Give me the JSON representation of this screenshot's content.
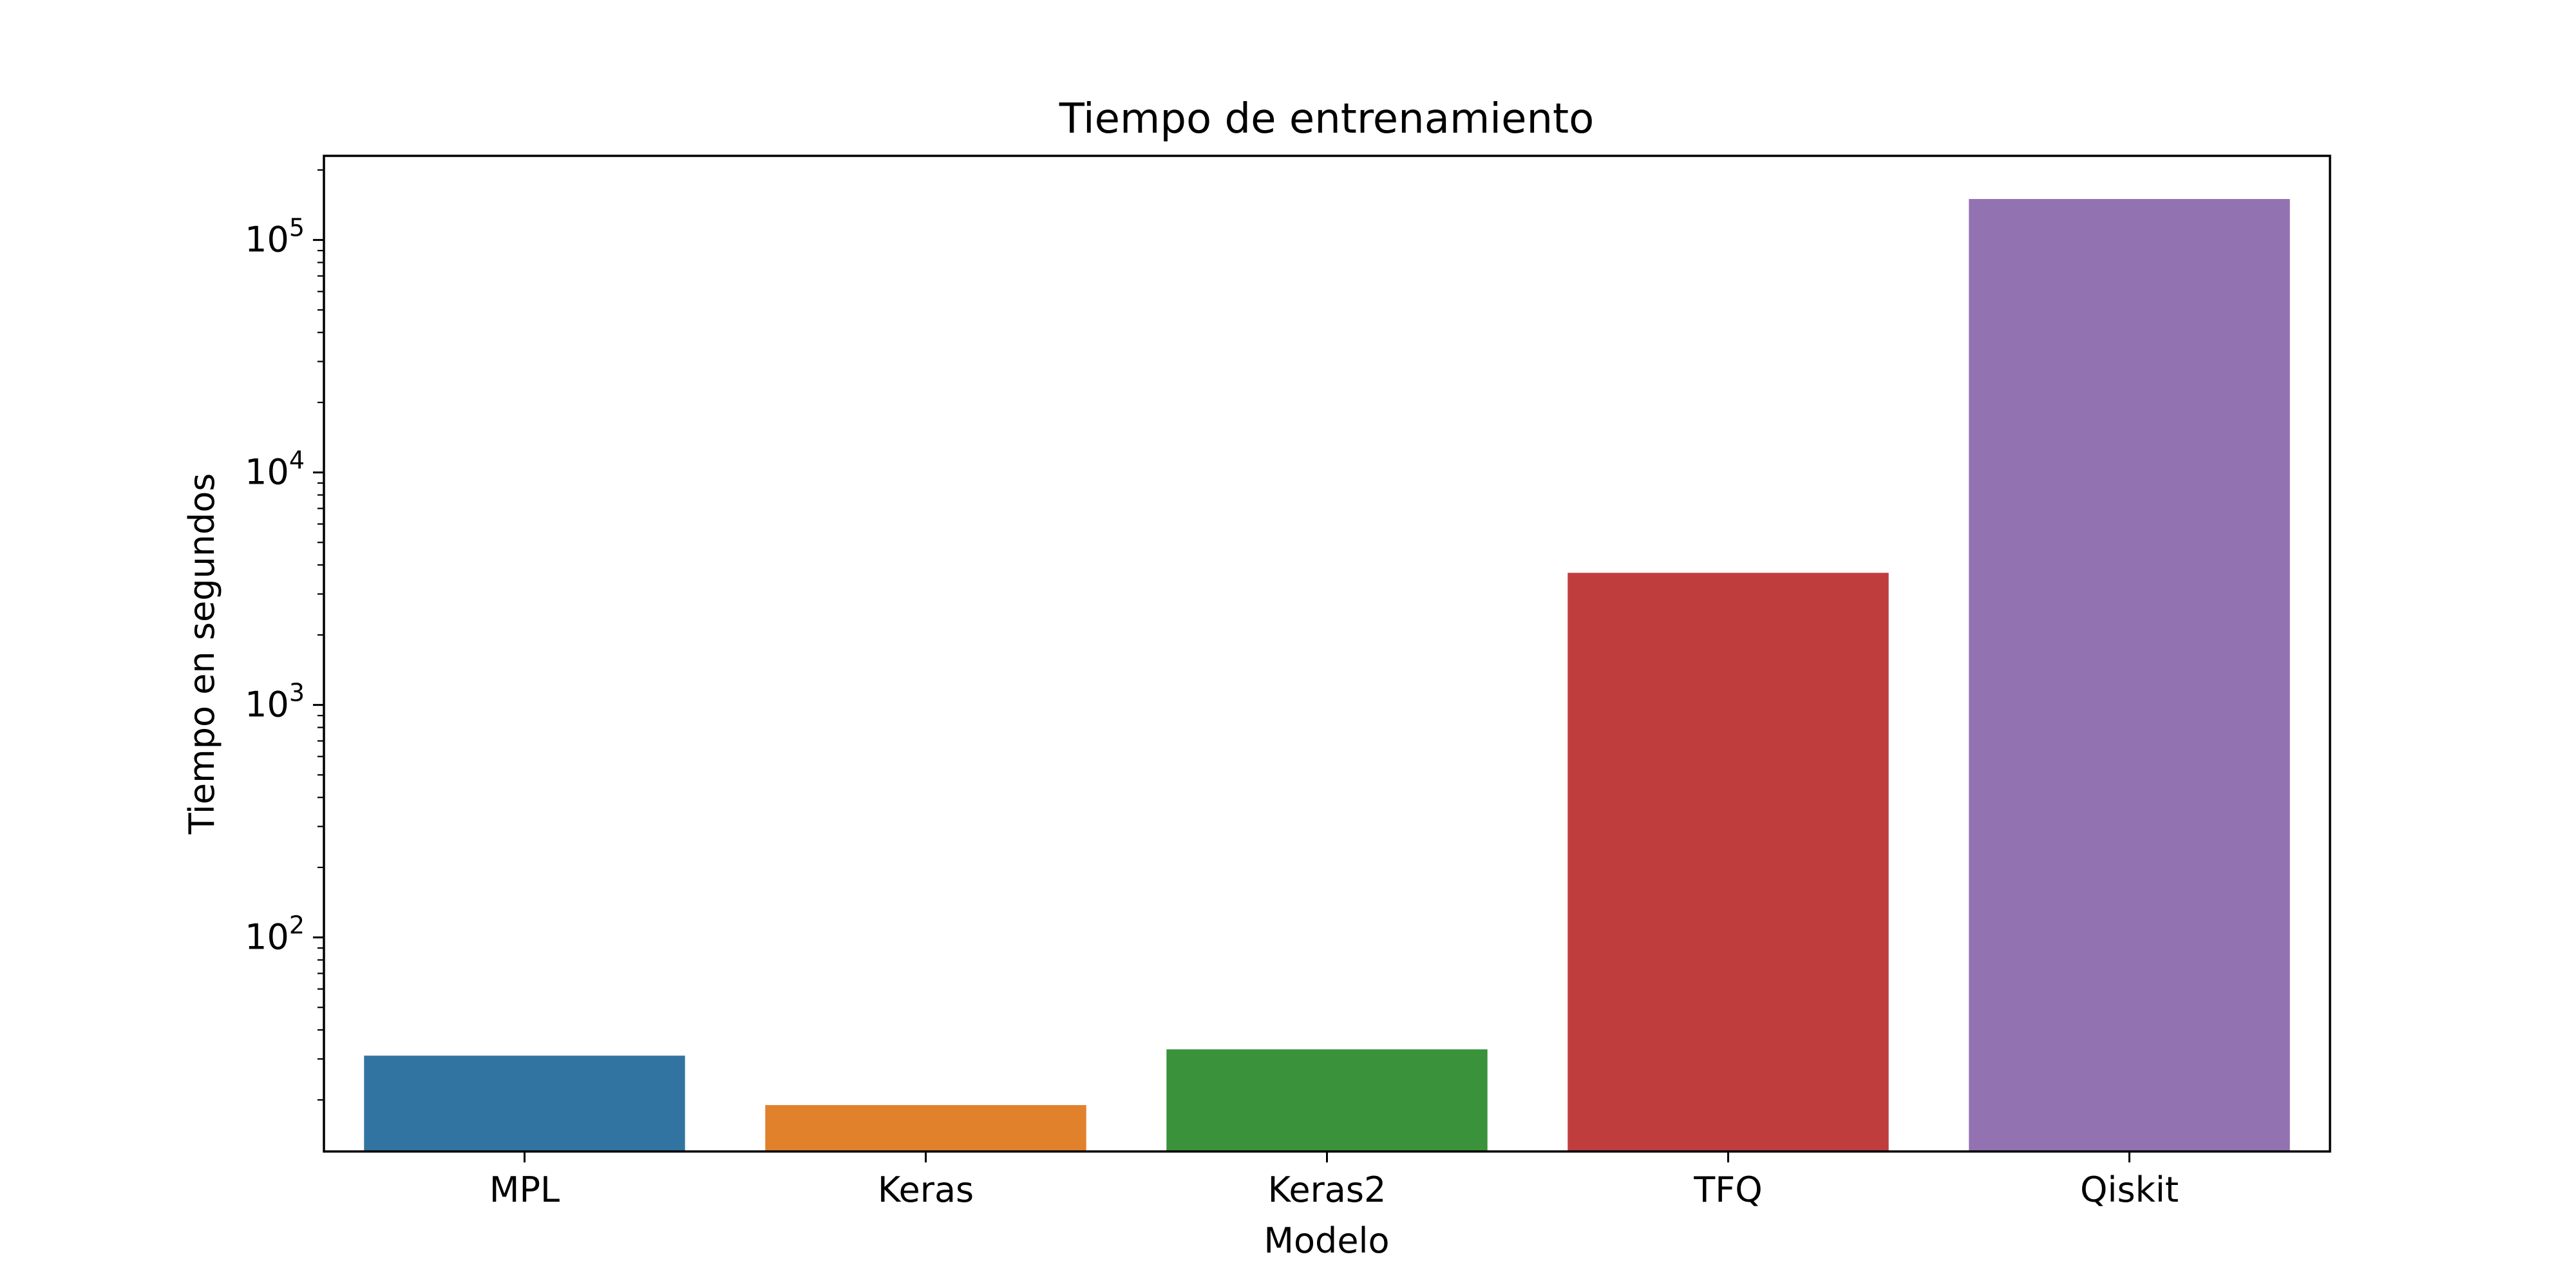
{
  "chart_data": {
    "type": "bar",
    "title": "Tiempo de entrenamiento",
    "xlabel": "Modelo",
    "ylabel": "Tiempo en segundos",
    "yscale": "log",
    "ylim": [
      12,
      230000
    ],
    "categories": [
      "MPL",
      "Keras",
      "Keras2",
      "TFQ",
      "Qiskit"
    ],
    "values": [
      31,
      19,
      33,
      3700,
      150000
    ],
    "colors": [
      "#3274a1",
      "#e1812c",
      "#3a923a",
      "#c03d3e",
      "#9372b2"
    ],
    "yticks": [
      {
        "base": "10",
        "exp": "2",
        "value": 100
      },
      {
        "base": "10",
        "exp": "3",
        "value": 1000
      },
      {
        "base": "10",
        "exp": "4",
        "value": 10000
      },
      {
        "base": "10",
        "exp": "5",
        "value": 100000
      }
    ],
    "grid": false,
    "legend": "none"
  }
}
